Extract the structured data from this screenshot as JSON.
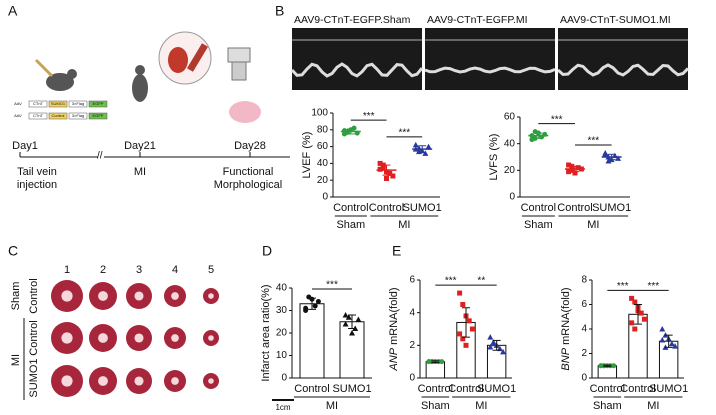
{
  "panel_labels": [
    "A",
    "B",
    "C",
    "D",
    "E"
  ],
  "timeline": {
    "days": [
      "Day1",
      "Day21",
      "Day28"
    ],
    "events": [
      [
        "Tail vein",
        "injection"
      ],
      [
        "MI"
      ],
      [
        "Functional",
        "Morphological"
      ]
    ],
    "constructs": [
      [
        "AAV",
        "CTnT",
        "SUMO1",
        "3×Flag",
        "EGFP"
      ],
      [
        "AAV",
        "CTnT",
        "Control",
        "3×Flag",
        "EGFP"
      ]
    ]
  },
  "echo_labels": [
    "AAV9-CTnT-EGFP.Sham",
    "AAV9-CTnT-EGFP.MI",
    "AAV9-CTnT-SUMO1.MI"
  ],
  "hearts": {
    "columns": [
      "1",
      "2",
      "3",
      "4",
      "5"
    ],
    "rows": [
      "Sham",
      "Control",
      "MI",
      "SUMO1",
      "Control"
    ],
    "scale": "1cm"
  },
  "chart_data": [
    {
      "type": "dot",
      "ylabel": "LVEF (%)",
      "ylim": [
        0,
        100
      ],
      "yticks": [
        0,
        20,
        40,
        60,
        80,
        100
      ],
      "categories": [
        "Control",
        "Control",
        "SUMO1"
      ],
      "groups": [
        {
          "name": "Sham",
          "size": 1
        },
        {
          "name": "MI",
          "size": 2
        }
      ],
      "colors": [
        "#2e9e3e",
        "#e02020",
        "#2a3a9c"
      ],
      "markers": [
        "circle",
        "square",
        "triangle"
      ],
      "values": [
        [
          75,
          78,
          80,
          82,
          76,
          79,
          77
        ],
        [
          40,
          35,
          30,
          28,
          25,
          33,
          38,
          22
        ],
        [
          62,
          58,
          55,
          52,
          60,
          57,
          54
        ]
      ],
      "means": [
        78,
        32,
        57
      ],
      "sds": [
        3,
        6,
        4
      ],
      "annotations": [
        {
          "text": "***",
          "from": 0,
          "to": 1
        },
        {
          "text": "***",
          "from": 1,
          "to": 2
        }
      ]
    },
    {
      "type": "dot",
      "ylabel": "LVFS (%)",
      "ylim": [
        0,
        60
      ],
      "yticks": [
        0,
        20,
        40,
        60
      ],
      "categories": [
        "Control",
        "Control",
        "SUMO1"
      ],
      "groups": [
        {
          "name": "Sham",
          "size": 1
        },
        {
          "name": "MI",
          "size": 2
        }
      ],
      "colors": [
        "#2e9e3e",
        "#e02020",
        "#2a3a9c"
      ],
      "markers": [
        "circle",
        "square",
        "triangle"
      ],
      "values": [
        [
          46,
          44,
          48,
          45,
          47,
          43,
          49
        ],
        [
          24,
          20,
          18,
          22,
          21,
          19,
          23
        ],
        [
          33,
          30,
          28,
          31,
          29,
          32,
          27
        ]
      ],
      "means": [
        46,
        21,
        30
      ],
      "sds": [
        2,
        2,
        2
      ],
      "annotations": [
        {
          "text": "***",
          "from": 0,
          "to": 1
        },
        {
          "text": "***",
          "from": 1,
          "to": 2
        }
      ]
    },
    {
      "type": "bar",
      "ylabel": "Infarct area ratio(%)",
      "ylim": [
        0,
        40
      ],
      "yticks": [
        0,
        10,
        20,
        30,
        40
      ],
      "categories": [
        "Control",
        "SUMO1"
      ],
      "groups": [
        {
          "name": "MI",
          "size": 2
        }
      ],
      "colors": [
        "#111111",
        "#111111"
      ],
      "markers": [
        "circle",
        "triangle"
      ],
      "values": [
        [
          30,
          36,
          35,
          32,
          34,
          31
        ],
        [
          28,
          27,
          20,
          22,
          26,
          24
        ]
      ],
      "means": [
        33,
        25
      ],
      "sds": [
        2.5,
        3
      ],
      "annotations": [
        {
          "text": "***",
          "from": 0,
          "to": 1
        }
      ]
    },
    {
      "type": "bar",
      "ylabel_italic": "ANP",
      "ylabel": " mRNA(fold)",
      "ylim": [
        0,
        6
      ],
      "yticks": [
        0,
        2,
        4,
        6
      ],
      "categories": [
        "Control",
        "Control",
        "SUMO1"
      ],
      "groups": [
        {
          "name": "Sham",
          "size": 1
        },
        {
          "name": "MI",
          "size": 2
        }
      ],
      "colors": [
        "#2e9e3e",
        "#e02020",
        "#2a3a9c"
      ],
      "markers": [
        "circle",
        "square",
        "triangle"
      ],
      "values": [
        [
          1,
          1,
          1,
          1,
          1,
          1,
          1
        ],
        [
          5.2,
          4.5,
          3.8,
          3.5,
          3.0,
          2.7,
          2.4,
          2.0
        ],
        [
          2.5,
          2.2,
          2.0,
          1.8,
          1.6,
          1.9,
          2.1
        ]
      ],
      "means": [
        1,
        3.4,
        2.0
      ],
      "sds": [
        0.05,
        0.9,
        0.3
      ],
      "annotations": [
        {
          "text": "***",
          "from": 0,
          "to": 1
        },
        {
          "text": "**",
          "from": 1,
          "to": 2
        }
      ]
    },
    {
      "type": "bar",
      "ylabel_italic": "BNP",
      "ylabel": " mRNA(fold)",
      "ylim": [
        0,
        8
      ],
      "yticks": [
        0,
        2,
        4,
        6,
        8
      ],
      "categories": [
        "Control",
        "Control",
        "SUMO1"
      ],
      "groups": [
        {
          "name": "Sham",
          "size": 1
        },
        {
          "name": "MI",
          "size": 2
        }
      ],
      "colors": [
        "#2e9e3e",
        "#e02020",
        "#2a3a9c"
      ],
      "markers": [
        "circle",
        "square",
        "triangle"
      ],
      "values": [
        [
          1,
          1,
          1,
          1,
          1,
          1,
          1
        ],
        [
          6.5,
          6.2,
          5.8,
          5.3,
          4.8,
          4.5,
          4.0,
          5.5
        ],
        [
          4.0,
          3.5,
          3.2,
          2.8,
          2.6,
          3.1,
          2.5
        ]
      ],
      "means": [
        1,
        5.2,
        3.0
      ],
      "sds": [
        0.05,
        0.8,
        0.5
      ],
      "annotations": [
        {
          "text": "***",
          "from": 0,
          "to": 1
        },
        {
          "text": "***",
          "from": 1,
          "to": 2
        }
      ]
    }
  ]
}
